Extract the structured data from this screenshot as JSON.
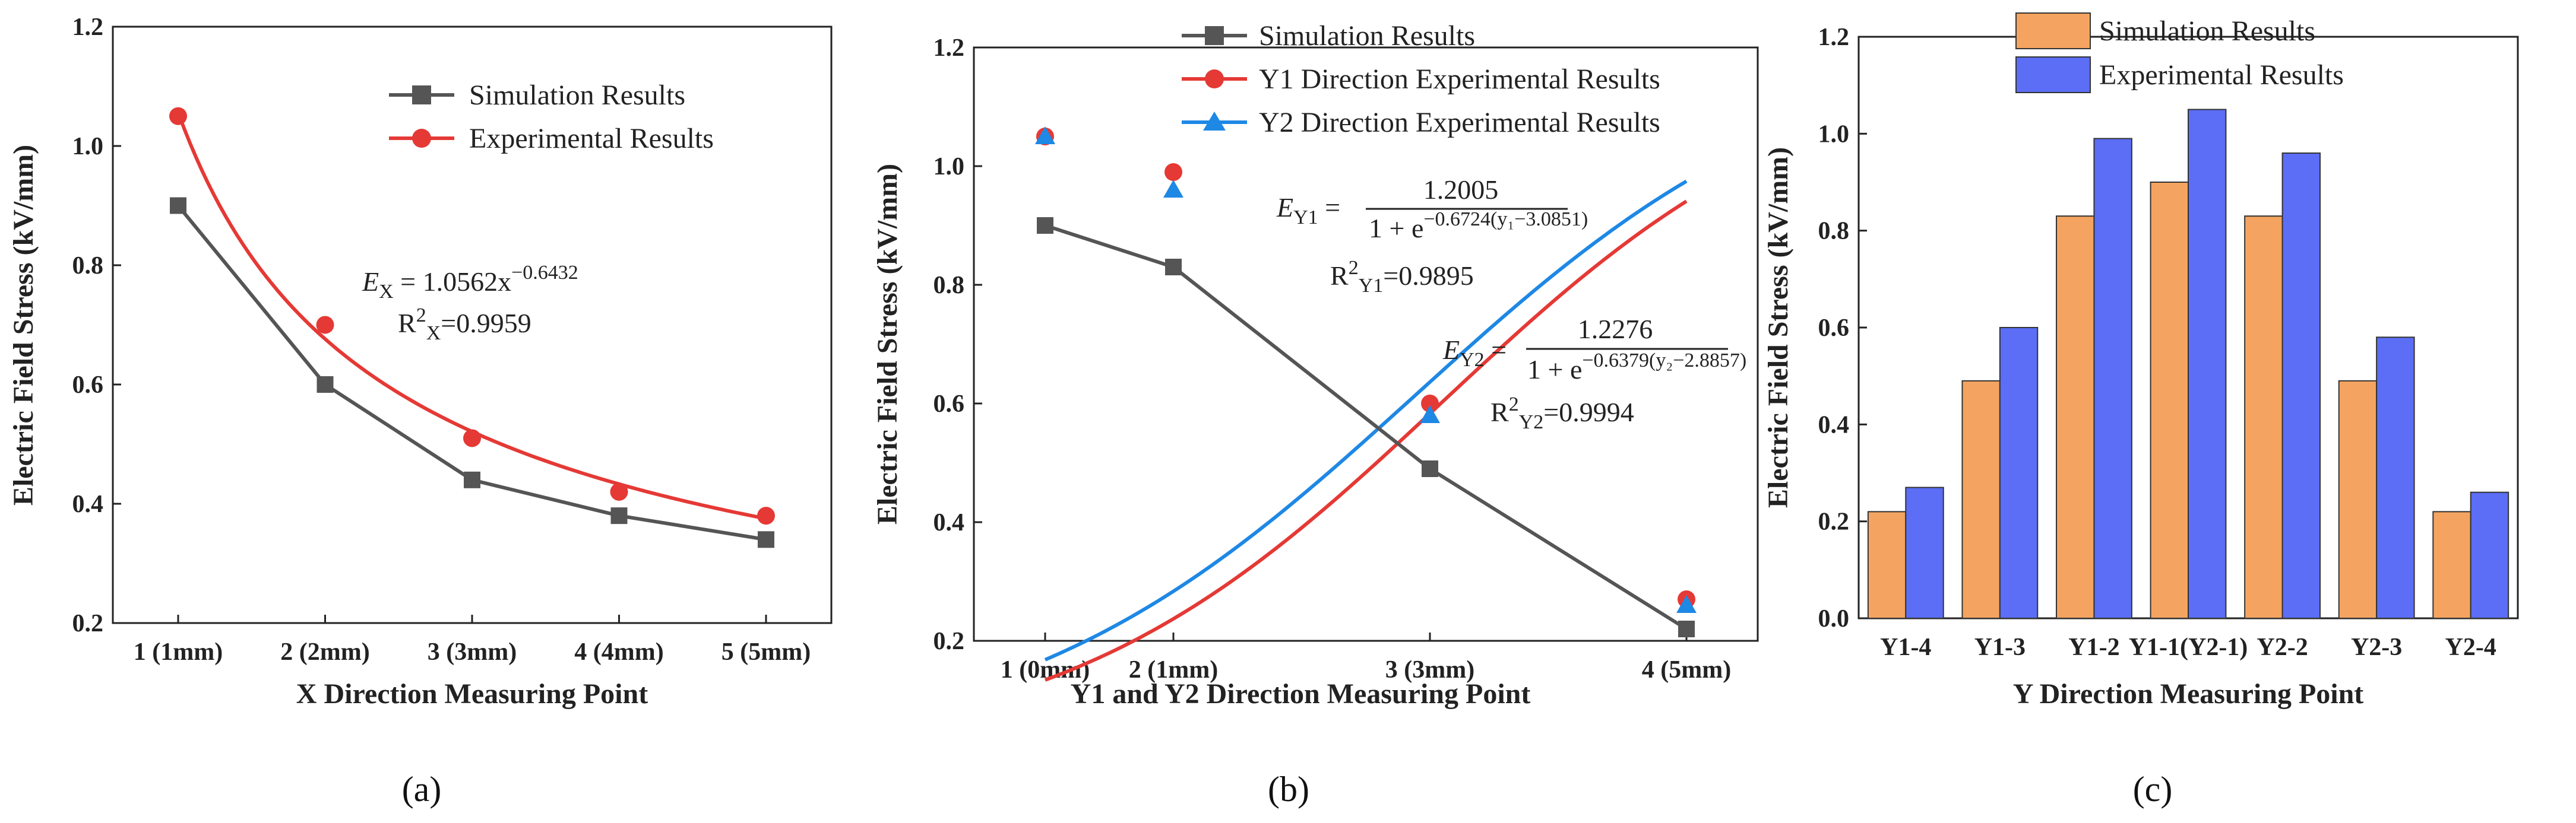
{
  "chart_data": [
    {
      "type": "line",
      "panel": "a",
      "caption": "(a)",
      "categories": [
        "1 (1mm)",
        "2 (2mm)",
        "3 (3mm)",
        "4 (4mm)",
        "5 (5mm)"
      ],
      "x": [
        1,
        2,
        3,
        4,
        5
      ],
      "xlabel": "X Direction Measuring Point",
      "ylabel": "Electric Field Stress (kV/mm)",
      "ylim": [
        0.2,
        1.2
      ],
      "yticks": [
        "0.2",
        "0.4",
        "0.6",
        "0.8",
        "1.0",
        "1.2"
      ],
      "legend_position": "top-right",
      "series": [
        {
          "name": "Simulation Results",
          "values": [
            0.9,
            0.6,
            0.44,
            0.38,
            0.34
          ],
          "color": "#555555",
          "marker": "square"
        },
        {
          "name": "Experimental Results",
          "values": [
            1.05,
            0.7,
            0.51,
            0.42,
            0.38
          ],
          "color": "#e53935",
          "marker": "circle"
        }
      ],
      "fits": [
        {
          "series": "Experimental Results",
          "model": "power",
          "a": 1.0562,
          "b": -0.6432,
          "color": "#e53935"
        }
      ],
      "annotations": {
        "eq_lhs": "E",
        "eq_lhs_sub": "X",
        "eq_rhs": " = 1.0562x",
        "eq_rhs_sup": "−0.6432",
        "r2_prefix": "R",
        "r2_sup": "2",
        "r2_sub": "X",
        "r2_value": "=0.9959"
      }
    },
    {
      "type": "line",
      "panel": "b",
      "caption": "(b)",
      "categories": [
        "1 (0mm)",
        "2 (1mm)",
        "3 (3mm)",
        "4 (5mm)"
      ],
      "x": [
        0,
        1,
        3,
        5
      ],
      "xlabel": "Y1 and Y2 Direction Measuring Point",
      "ylabel": "Electric Field Stress (kV/mm)",
      "ylim": [
        0.2,
        1.2
      ],
      "yticks": [
        "0.2",
        "0.4",
        "0.6",
        "0.8",
        "1.0",
        "1.2"
      ],
      "legend_position": "top-right",
      "series": [
        {
          "name": "Simulation Results",
          "values": [
            0.9,
            0.83,
            0.49,
            0.22
          ],
          "color": "#555555",
          "marker": "square"
        },
        {
          "name": "Y1 Direction Experimental Results",
          "values": [
            1.05,
            0.99,
            0.6,
            0.27
          ],
          "color": "#e53935",
          "marker": "circle"
        },
        {
          "name": "Y2 Direction Experimental Results",
          "values": [
            1.05,
            0.96,
            0.58,
            0.26
          ],
          "color": "#1e88e5",
          "marker": "triangle"
        }
      ],
      "fits": [
        {
          "series": "Y1 Direction Experimental Results",
          "model": "logistic",
          "a": 1.2005,
          "k": 0.6724,
          "x0": 3.0851,
          "color": "#e53935"
        },
        {
          "series": "Y2 Direction Experimental Results",
          "model": "logistic",
          "a": 1.2276,
          "k": 0.6379,
          "x0": 2.8857,
          "color": "#1e88e5"
        }
      ],
      "annotations": {
        "y1_lhs": "E",
        "y1_lhs_sub": "Y1",
        "y1_num": "1.2005",
        "y1_den": "1 + e",
        "y1_den_sup": "−0.6724(y₁−3.0851)",
        "y1_r2_prefix": "R",
        "y1_r2_sup": "2",
        "y1_r2_sub": "Y1",
        "y1_r2_value": "=0.9895",
        "y2_lhs": "E",
        "y2_lhs_sub": "Y2",
        "y2_num": "1.2276",
        "y2_den": "1 + e",
        "y2_den_sup": "−0.6379(y₂−2.8857)",
        "y2_r2_prefix": "R",
        "y2_r2_sup": "2",
        "y2_r2_sub": "Y2",
        "y2_r2_value": "=0.9994"
      }
    },
    {
      "type": "bar",
      "panel": "c",
      "caption": "(c)",
      "categories": [
        "Y1-4",
        "Y1-3",
        "Y1-2",
        "Y1-1(Y2-1)",
        "Y2-2",
        "Y2-3",
        "Y2-4"
      ],
      "xlabel": "Y Direction Measuring Point",
      "ylabel": "Electric Field Stress (kV/mm)",
      "ylim": [
        0.0,
        1.2
      ],
      "yticks": [
        "0.0",
        "0.2",
        "0.4",
        "0.6",
        "0.8",
        "1.0",
        "1.2"
      ],
      "legend_position": "top-left",
      "series": [
        {
          "name": "Simulation Results",
          "values": [
            0.22,
            0.49,
            0.83,
            0.9,
            0.83,
            0.49,
            0.22
          ],
          "color": "#f4a460"
        },
        {
          "name": "Experimental Results",
          "values": [
            0.27,
            0.6,
            0.99,
            1.05,
            0.96,
            0.58,
            0.26
          ],
          "color": "#5b6ef5"
        }
      ]
    }
  ]
}
